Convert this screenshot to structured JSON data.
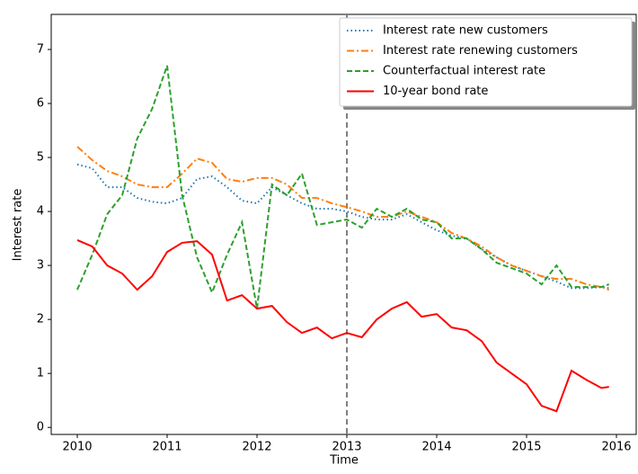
{
  "chart_data": {
    "type": "line",
    "xlabel": "Time",
    "ylabel": "Interest rate",
    "x": [
      2010.0,
      2010.167,
      2010.333,
      2010.5,
      2010.667,
      2010.833,
      2011.0,
      2011.167,
      2011.333,
      2011.5,
      2011.667,
      2011.833,
      2012.0,
      2012.167,
      2012.333,
      2012.5,
      2012.667,
      2012.833,
      2013.0,
      2013.167,
      2013.333,
      2013.5,
      2013.667,
      2013.833,
      2014.0,
      2014.167,
      2014.333,
      2014.5,
      2014.667,
      2014.833,
      2015.0,
      2015.167,
      2015.333,
      2015.5,
      2015.667,
      2015.833,
      2015.917
    ],
    "series": [
      {
        "name": "Interest rate new customers",
        "color": "#1f77b4",
        "linestyle": "dotted",
        "values": [
          4.87,
          4.8,
          4.45,
          4.45,
          4.25,
          4.18,
          4.15,
          4.25,
          4.6,
          4.65,
          4.45,
          4.2,
          4.15,
          4.45,
          4.3,
          4.15,
          4.05,
          4.05,
          4.0,
          3.9,
          3.85,
          3.85,
          3.95,
          3.8,
          3.65,
          3.55,
          3.5,
          3.3,
          3.15,
          3.0,
          2.9,
          2.8,
          2.7,
          2.58,
          2.58,
          2.6,
          2.58
        ]
      },
      {
        "name": "Interest rate renewing customers",
        "color": "#ff7f0e",
        "linestyle": "dashdot",
        "values": [
          5.2,
          4.95,
          4.75,
          4.65,
          4.5,
          4.45,
          4.45,
          4.7,
          4.98,
          4.9,
          4.6,
          4.55,
          4.62,
          4.62,
          4.5,
          4.25,
          4.25,
          4.15,
          4.08,
          4.0,
          3.9,
          3.9,
          4.0,
          3.9,
          3.8,
          3.6,
          3.5,
          3.35,
          3.15,
          3.0,
          2.9,
          2.8,
          2.75,
          2.75,
          2.65,
          2.6,
          2.55
        ]
      },
      {
        "name": "Counterfactual interest rate",
        "color": "#2ca02c",
        "linestyle": "dashed",
        "values": [
          2.55,
          3.2,
          3.95,
          4.3,
          5.35,
          5.9,
          6.7,
          4.3,
          3.15,
          2.5,
          3.2,
          3.8,
          2.2,
          4.5,
          4.3,
          4.7,
          3.75,
          3.8,
          3.85,
          3.7,
          4.05,
          3.9,
          4.05,
          3.85,
          3.8,
          3.5,
          3.5,
          3.3,
          3.05,
          2.95,
          2.85,
          2.65,
          3.0,
          2.6,
          2.6,
          2.6,
          2.65
        ]
      },
      {
        "name": "10-year bond rate",
        "color": "#ff0000",
        "linestyle": "solid",
        "values": [
          3.47,
          3.35,
          3.0,
          2.85,
          2.55,
          2.8,
          3.25,
          3.42,
          3.45,
          3.2,
          2.35,
          2.45,
          2.2,
          2.25,
          1.95,
          1.75,
          1.85,
          1.65,
          1.75,
          1.67,
          2.0,
          2.2,
          2.32,
          2.05,
          2.1,
          1.85,
          1.8,
          1.6,
          1.2,
          1.0,
          0.8,
          0.4,
          0.3,
          1.05,
          0.88,
          0.73,
          0.75
        ]
      }
    ],
    "xlim": [
      2009.71,
      2016.22
    ],
    "xticks": [
      2010,
      2011,
      2012,
      2013,
      2014,
      2015,
      2016
    ],
    "ylim": [
      -0.13,
      7.65
    ],
    "yticks": [
      0,
      1,
      2,
      3,
      4,
      5,
      6,
      7
    ],
    "vline": 2013,
    "legend": "upper right",
    "grid": false
  }
}
